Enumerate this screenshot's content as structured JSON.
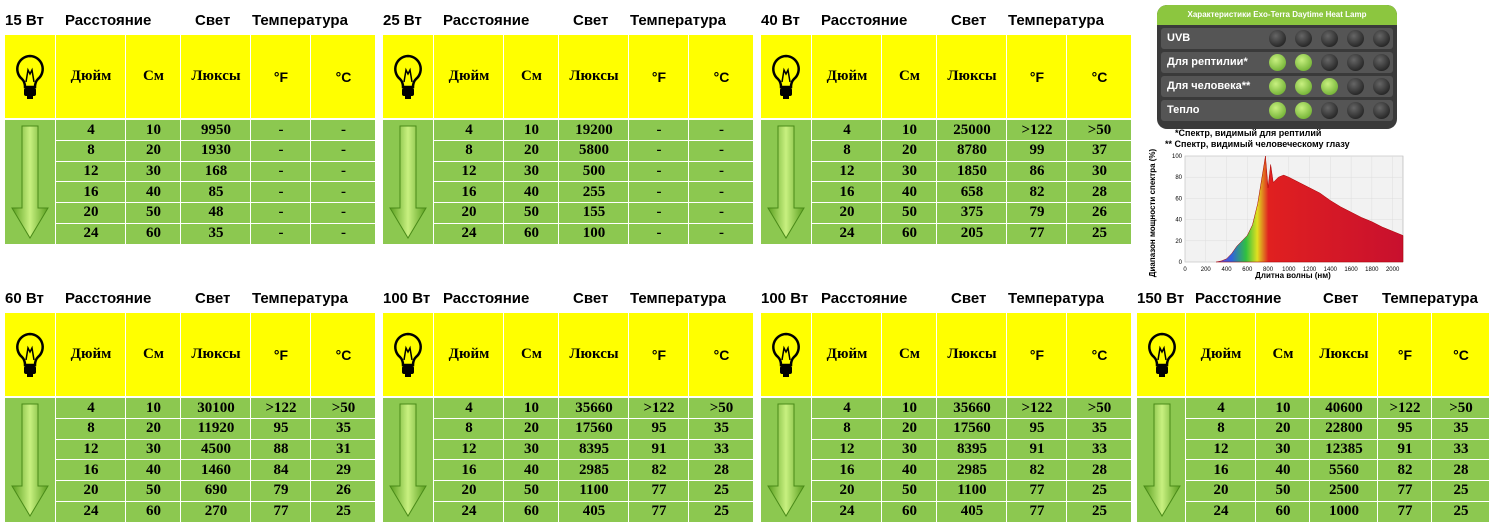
{
  "columns": {
    "distance": "Расстояние",
    "light": "Свет",
    "temperature": "Температура",
    "sub": [
      "Дюйм",
      "См",
      "Люксы",
      "°F",
      "°C"
    ]
  },
  "tables": [
    {
      "watt": "15 Вт",
      "rows": [
        [
          4,
          10,
          9950,
          "-",
          "-"
        ],
        [
          8,
          20,
          1930,
          "-",
          "-"
        ],
        [
          12,
          30,
          168,
          "-",
          "-"
        ],
        [
          16,
          40,
          85,
          "-",
          "-"
        ],
        [
          20,
          50,
          48,
          "-",
          "-"
        ],
        [
          24,
          60,
          35,
          "-",
          "-"
        ]
      ]
    },
    {
      "watt": "25 Вт",
      "rows": [
        [
          4,
          10,
          19200,
          "-",
          "-"
        ],
        [
          8,
          20,
          5800,
          "-",
          "-"
        ],
        [
          12,
          30,
          500,
          "-",
          "-"
        ],
        [
          16,
          40,
          255,
          "-",
          "-"
        ],
        [
          20,
          50,
          155,
          "-",
          "-"
        ],
        [
          24,
          60,
          100,
          "-",
          "-"
        ]
      ]
    },
    {
      "watt": "40 Вт",
      "rows": [
        [
          4,
          10,
          25000,
          ">122",
          ">50"
        ],
        [
          8,
          20,
          8780,
          99,
          37
        ],
        [
          12,
          30,
          1850,
          86,
          30
        ],
        [
          16,
          40,
          658,
          82,
          28
        ],
        [
          20,
          50,
          375,
          79,
          26
        ],
        [
          24,
          60,
          205,
          77,
          25
        ]
      ]
    },
    {
      "watt": "60 Вт",
      "rows": [
        [
          4,
          10,
          30100,
          ">122",
          ">50"
        ],
        [
          8,
          20,
          11920,
          95,
          35
        ],
        [
          12,
          30,
          4500,
          88,
          31
        ],
        [
          16,
          40,
          1460,
          84,
          29
        ],
        [
          20,
          50,
          690,
          79,
          26
        ],
        [
          24,
          60,
          270,
          77,
          25
        ]
      ]
    },
    {
      "watt": "100 Вт",
      "rows": [
        [
          4,
          10,
          35660,
          ">122",
          ">50"
        ],
        [
          8,
          20,
          17560,
          95,
          35
        ],
        [
          12,
          30,
          8395,
          91,
          33
        ],
        [
          16,
          40,
          2985,
          82,
          28
        ],
        [
          20,
          50,
          1100,
          77,
          25
        ],
        [
          24,
          60,
          405,
          77,
          25
        ]
      ]
    },
    {
      "watt": "100 Вт",
      "rows": [
        [
          4,
          10,
          35660,
          ">122",
          ">50"
        ],
        [
          8,
          20,
          17560,
          95,
          35
        ],
        [
          12,
          30,
          8395,
          91,
          33
        ],
        [
          16,
          40,
          2985,
          82,
          28
        ],
        [
          20,
          50,
          1100,
          77,
          25
        ],
        [
          24,
          60,
          405,
          77,
          25
        ]
      ]
    },
    {
      "watt": "150 Вт",
      "rows": [
        [
          4,
          10,
          40600,
          ">122",
          ">50"
        ],
        [
          8,
          20,
          22800,
          95,
          35
        ],
        [
          12,
          30,
          12385,
          91,
          33
        ],
        [
          16,
          40,
          5560,
          82,
          28
        ],
        [
          20,
          50,
          2500,
          77,
          25
        ],
        [
          24,
          60,
          1000,
          77,
          25
        ]
      ]
    }
  ],
  "panel": {
    "title": "Характеристики Exo-Terra Daytime Heat Lamp",
    "levels": 5,
    "rows": [
      {
        "label": "UVB",
        "value": 0
      },
      {
        "label": "Для рептилии*",
        "value": 2
      },
      {
        "label": "Для человека**",
        "value": 3
      },
      {
        "label": "Тепло",
        "value": 2
      }
    ],
    "notes": [
      "*Спектр, видимый для рептилий",
      "** Спектр, видимый человеческому глазу"
    ]
  },
  "chart_data": {
    "type": "area",
    "ylabel": "Диапазон мощности спектра (%)",
    "xlabel": "Длитна волны (нм)",
    "x": [
      300,
      350,
      400,
      450,
      500,
      550,
      600,
      650,
      700,
      750,
      775,
      800,
      825,
      850,
      900,
      950,
      1000,
      1100,
      1200,
      1300,
      1400,
      1500,
      1600,
      1700,
      1800,
      1900,
      2000,
      2100
    ],
    "values": [
      0,
      1,
      3,
      8,
      15,
      20,
      25,
      35,
      55,
      85,
      100,
      70,
      92,
      75,
      80,
      82,
      80,
      75,
      70,
      65,
      58,
      52,
      47,
      42,
      38,
      33,
      29,
      25
    ],
    "xlim": [
      0,
      2100
    ],
    "ylim": [
      0,
      100
    ],
    "xticks": [
      0,
      200,
      400,
      600,
      800,
      1000,
      1200,
      1400,
      1600,
      1800,
      2000
    ],
    "yticks": [
      0,
      20,
      40,
      60,
      80,
      100
    ],
    "grid": true
  }
}
